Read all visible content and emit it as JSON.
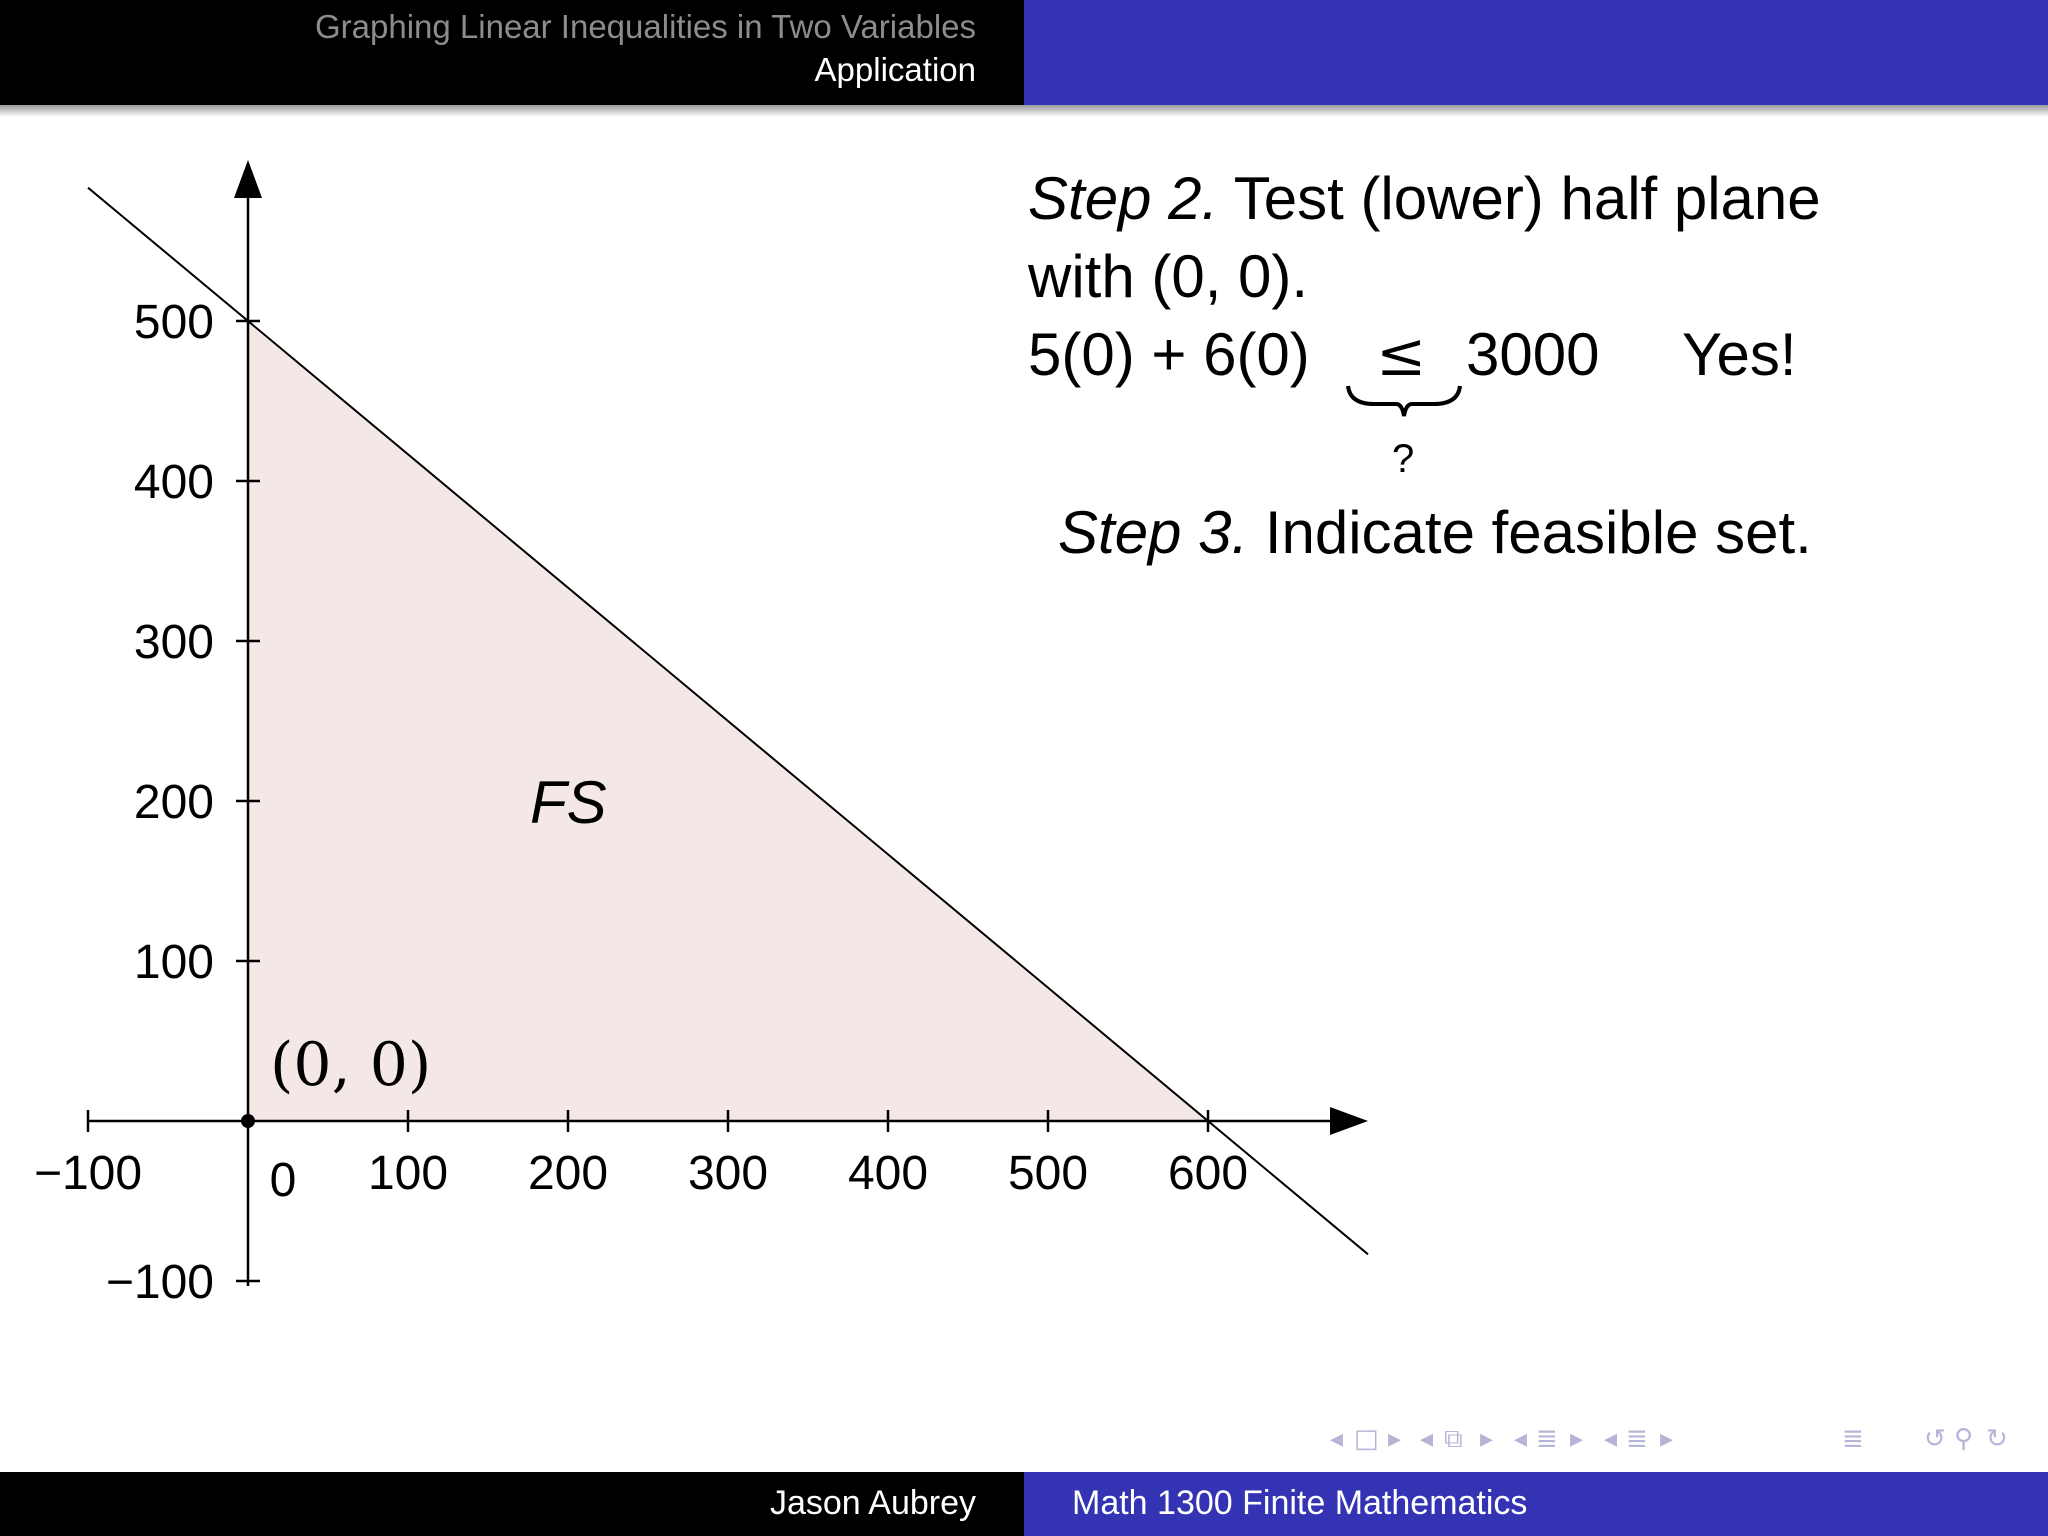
{
  "header": {
    "section_title": "Graphing Linear Inequalities in Two Variables",
    "subsection_title": "Application"
  },
  "content": {
    "step2_label": "Step 2.",
    "step2_text": "Test (lower) half plane",
    "step2_text_cont": "with (0, 0).",
    "equation_lhs": "5(0) + 6(0)",
    "equation_relation": "≤",
    "equation_relation_note": "?",
    "equation_rhs": "3000",
    "equation_verdict": "Yes!",
    "step3_label": "Step 3.",
    "step3_text": "Indicate feasible set."
  },
  "graph": {
    "x_ticks": [
      "−100",
      "0",
      "100",
      "200",
      "300",
      "400",
      "500",
      "600"
    ],
    "y_ticks": [
      "500",
      "400",
      "300",
      "200",
      "100",
      "−100"
    ],
    "region_label": "FS",
    "point_label": "(0, 0)",
    "region_color": "#f3e8e6"
  },
  "chart_data": {
    "type": "line",
    "x": [
      -100,
      700
    ],
    "series": [
      {
        "values": [
          583.33,
          -83.33
        ]
      }
    ],
    "xlim": [
      -100,
      700
    ],
    "ylim": [
      -100,
      583
    ],
    "points": [
      {
        "x": 0,
        "y": 0,
        "label": "(0, 0)"
      }
    ],
    "region": {
      "label": "FS",
      "vertices": [
        [
          0,
          0
        ],
        [
          600,
          0
        ],
        [
          0,
          500
        ]
      ]
    }
  },
  "footer": {
    "author": "Jason Aubrey",
    "course": "Math 1300 Finite Mathematics"
  },
  "nav": {
    "icons": [
      "nav-prev-frame-icon",
      "nav-frame-icon",
      "nav-next-frame-icon",
      "nav-prev-slide-icon",
      "nav-slide-icon",
      "nav-next-slide-icon",
      "nav-prev-section-icon",
      "nav-section-icon",
      "nav-next-section-icon",
      "nav-prev-subsection-icon",
      "nav-subsection-icon",
      "nav-next-subsection-icon",
      "nav-outline-icon",
      "nav-back-icon",
      "nav-search-icon",
      "nav-forward-icon"
    ]
  }
}
